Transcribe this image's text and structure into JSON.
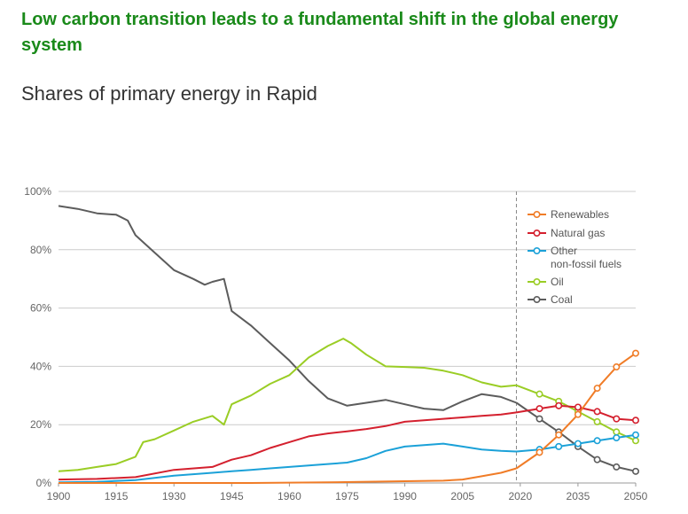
{
  "headline": "Low carbon transition leads to a fundamental shift in the global energy system",
  "subtitle": "Shares of primary energy in Rapid",
  "colors": {
    "Renewables": "#f07c27",
    "Natural gas": "#d4202e",
    "Other non-fossil fuels": "#1ba1d8",
    "Oil": "#9acd25",
    "Coal": "#5c5c5c"
  },
  "chart_data": {
    "type": "line",
    "xlim": [
      1900,
      2050
    ],
    "ylim": [
      0,
      100
    ],
    "x_ticks": [
      "1900",
      "1915",
      "1930",
      "1945",
      "1960",
      "1975",
      "1990",
      "2005",
      "2020",
      "2035",
      "2050"
    ],
    "y_ticks": [
      "0%",
      "20%",
      "40%",
      "60%",
      "80%",
      "100%"
    ],
    "reference_line_x": 2019,
    "grid": "horizontal",
    "legend_position": "top-right",
    "legend": [
      "Renewables",
      "Natural gas",
      "Other",
      "non-fossil fuels",
      "Oil",
      "Coal"
    ],
    "series": [
      {
        "name": "Renewables",
        "history": [
          [
            1900,
            0
          ],
          [
            1950,
            0
          ],
          [
            1970,
            0.2
          ],
          [
            1990,
            0.6
          ],
          [
            2000,
            0.8
          ],
          [
            2005,
            1.2
          ],
          [
            2010,
            2.3
          ],
          [
            2015,
            3.5
          ],
          [
            2019,
            5
          ]
        ],
        "projection": [
          [
            2025,
            10.5
          ],
          [
            2030,
            16.5
          ],
          [
            2035,
            23.5
          ],
          [
            2040,
            32.5
          ],
          [
            2045,
            39.8
          ],
          [
            2050,
            44.5
          ]
        ]
      },
      {
        "name": "Natural gas",
        "history": [
          [
            1900,
            1.2
          ],
          [
            1910,
            1.4
          ],
          [
            1920,
            2
          ],
          [
            1930,
            4.5
          ],
          [
            1940,
            5.5
          ],
          [
            1945,
            8
          ],
          [
            1950,
            9.5
          ],
          [
            1955,
            12
          ],
          [
            1960,
            14
          ],
          [
            1965,
            16
          ],
          [
            1970,
            17
          ],
          [
            1975,
            17.7
          ],
          [
            1980,
            18.5
          ],
          [
            1985,
            19.5
          ],
          [
            1990,
            21
          ],
          [
            1995,
            21.5
          ],
          [
            2000,
            22
          ],
          [
            2005,
            22.5
          ],
          [
            2010,
            23
          ],
          [
            2015,
            23.5
          ],
          [
            2019,
            24.2
          ]
        ],
        "projection": [
          [
            2025,
            25.5
          ],
          [
            2030,
            26.5
          ],
          [
            2035,
            26
          ],
          [
            2040,
            24.5
          ],
          [
            2045,
            22
          ],
          [
            2050,
            21.5
          ]
        ]
      },
      {
        "name": "Other non-fossil fuels",
        "history": [
          [
            1900,
            0.2
          ],
          [
            1910,
            0.4
          ],
          [
            1920,
            1
          ],
          [
            1930,
            2.5
          ],
          [
            1940,
            3.5
          ],
          [
            1945,
            4
          ],
          [
            1950,
            4.5
          ],
          [
            1955,
            5
          ],
          [
            1960,
            5.5
          ],
          [
            1965,
            6
          ],
          [
            1970,
            6.5
          ],
          [
            1975,
            7
          ],
          [
            1980,
            8.5
          ],
          [
            1985,
            11
          ],
          [
            1990,
            12.5
          ],
          [
            1995,
            13
          ],
          [
            2000,
            13.5
          ],
          [
            2005,
            12.5
          ],
          [
            2010,
            11.5
          ],
          [
            2015,
            11
          ],
          [
            2019,
            10.8
          ]
        ],
        "projection": [
          [
            2025,
            11.5
          ],
          [
            2030,
            12.5
          ],
          [
            2035,
            13.5
          ],
          [
            2040,
            14.5
          ],
          [
            2045,
            15.5
          ],
          [
            2050,
            16.5
          ]
        ]
      },
      {
        "name": "Oil",
        "history": [
          [
            1900,
            4
          ],
          [
            1905,
            4.5
          ],
          [
            1910,
            5.5
          ],
          [
            1915,
            6.5
          ],
          [
            1920,
            9
          ],
          [
            1922,
            14
          ],
          [
            1925,
            15
          ],
          [
            1930,
            18
          ],
          [
            1935,
            21
          ],
          [
            1940,
            23
          ],
          [
            1943,
            20
          ],
          [
            1945,
            27
          ],
          [
            1950,
            30
          ],
          [
            1955,
            34
          ],
          [
            1960,
            37
          ],
          [
            1965,
            43
          ],
          [
            1970,
            47
          ],
          [
            1974,
            49.5
          ],
          [
            1976,
            48
          ],
          [
            1980,
            44
          ],
          [
            1985,
            40
          ],
          [
            1990,
            39.8
          ],
          [
            1995,
            39.5
          ],
          [
            2000,
            38.5
          ],
          [
            2005,
            37
          ],
          [
            2010,
            34.5
          ],
          [
            2015,
            33
          ],
          [
            2019,
            33.5
          ]
        ],
        "projection": [
          [
            2025,
            30.5
          ],
          [
            2030,
            28
          ],
          [
            2035,
            24.5
          ],
          [
            2040,
            21
          ],
          [
            2045,
            17.5
          ],
          [
            2050,
            14.5
          ]
        ]
      },
      {
        "name": "Coal",
        "history": [
          [
            1900,
            95
          ],
          [
            1905,
            94
          ],
          [
            1910,
            92.5
          ],
          [
            1915,
            92
          ],
          [
            1918,
            90
          ],
          [
            1920,
            85
          ],
          [
            1925,
            79
          ],
          [
            1930,
            73
          ],
          [
            1935,
            70
          ],
          [
            1938,
            68
          ],
          [
            1940,
            69
          ],
          [
            1943,
            70
          ],
          [
            1945,
            59
          ],
          [
            1950,
            54
          ],
          [
            1955,
            48
          ],
          [
            1960,
            42
          ],
          [
            1965,
            35
          ],
          [
            1970,
            29
          ],
          [
            1975,
            26.5
          ],
          [
            1980,
            27.5
          ],
          [
            1985,
            28.5
          ],
          [
            1990,
            27
          ],
          [
            1995,
            25.5
          ],
          [
            2000,
            25
          ],
          [
            2005,
            28
          ],
          [
            2010,
            30.5
          ],
          [
            2015,
            29.5
          ],
          [
            2019,
            27.5
          ]
        ],
        "projection": [
          [
            2025,
            22
          ],
          [
            2030,
            17.5
          ],
          [
            2035,
            12.5
          ],
          [
            2040,
            8
          ],
          [
            2045,
            5.5
          ],
          [
            2050,
            4
          ]
        ]
      }
    ]
  }
}
